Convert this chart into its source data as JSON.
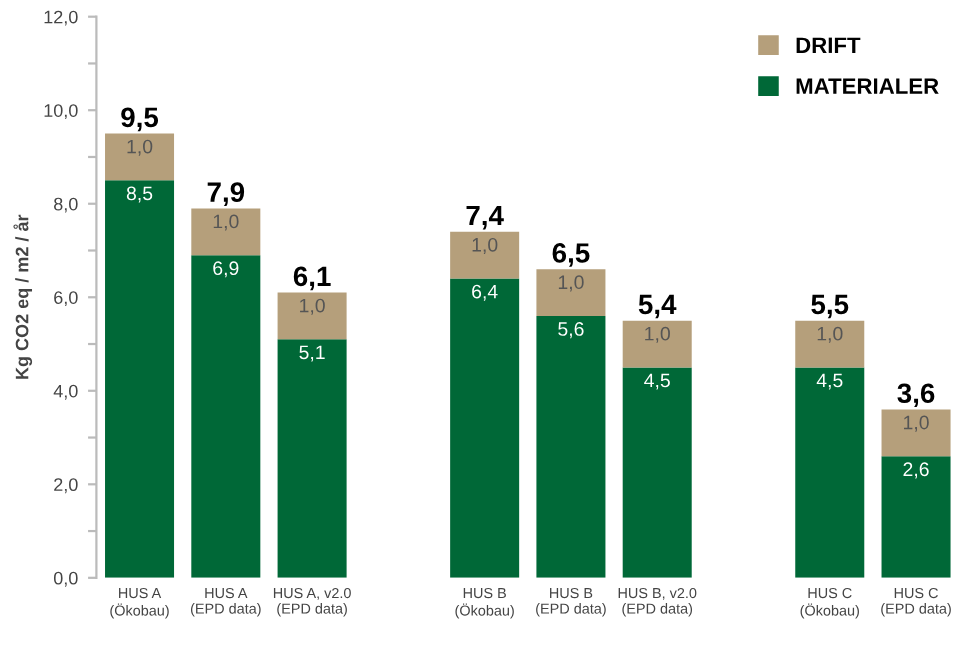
{
  "chart_data": {
    "type": "bar",
    "stacked": true,
    "ylabel": "Kg CO2 eq / m2 / år",
    "categories": [
      "HUS A\n(Ökobau)",
      "HUS A\n(EPD data)",
      "HUS A, v2.0\n(EPD data)",
      null,
      "HUS B\n(Ökobau)",
      "HUS B\n(EPD data)",
      "HUS B, v2.0\n(EPD data)",
      null,
      "HUS C\n(Ökobau)",
      "HUS C\n(EPD data)"
    ],
    "series": [
      {
        "name": "MATERIALER",
        "color": "#006837",
        "values": [
          8.5,
          6.9,
          5.1,
          null,
          6.4,
          5.6,
          4.5,
          null,
          4.5,
          2.6
        ],
        "value_labels": [
          "8,5",
          "6,9",
          "5,1",
          null,
          "6,4",
          "5,6",
          "4,5",
          null,
          "4,5",
          "2,6"
        ]
      },
      {
        "name": "DRIFT",
        "color": "#b59f7b",
        "values": [
          1.0,
          1.0,
          1.0,
          null,
          1.0,
          1.0,
          1.0,
          null,
          1.0,
          1.0
        ],
        "value_labels": [
          "1,0",
          "1,0",
          "1,0",
          null,
          "1,0",
          "1,0",
          "1,0",
          null,
          "1,0",
          "1,0"
        ]
      }
    ],
    "totals": [
      "9,5",
      "7,9",
      "6,1",
      null,
      "7,4",
      "6,5",
      "5,4",
      null,
      "5,5",
      "3,6"
    ],
    "ylim": [
      0,
      12
    ],
    "yticks": [
      {
        "value": 0,
        "label": "0,0"
      },
      {
        "value": 1,
        "label": null
      },
      {
        "value": 2,
        "label": "2,0"
      },
      {
        "value": 3,
        "label": null
      },
      {
        "value": 4,
        "label": "4,0"
      },
      {
        "value": 5,
        "label": null
      },
      {
        "value": 6,
        "label": "6,0"
      },
      {
        "value": 7,
        "label": null
      },
      {
        "value": 8,
        "label": "8,0"
      },
      {
        "value": 9,
        "label": null
      },
      {
        "value": 10,
        "label": "10,0"
      },
      {
        "value": 11,
        "label": null
      },
      {
        "value": 12,
        "label": "12,0"
      }
    ],
    "legend": "top right",
    "grid": false
  }
}
